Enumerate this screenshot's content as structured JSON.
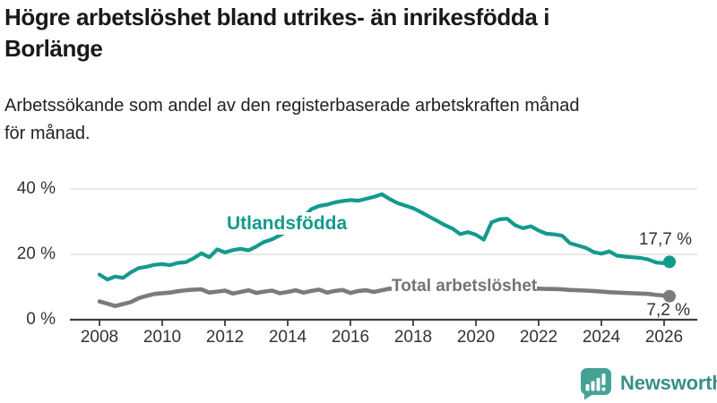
{
  "header": {
    "title_lines": [
      "Högre arbetslöshet bland utrikes- än inrikesfödda i",
      "Borlänge"
    ],
    "subtitle_lines": [
      "Arbetssökande som andel av den registerbaserade arbetskraften månad",
      "för månad."
    ]
  },
  "chart_data": {
    "type": "line",
    "title": "Högre arbetslöshet bland utrikes- än inrikesfödda i Borlänge",
    "subtitle": "Arbetssökande som andel av den registerbaserade arbetskraften månad för månad.",
    "unit": "%",
    "grid": "horizontal-only",
    "legend_position": "inline-labels",
    "x_axis": {
      "range": [
        2007.1,
        2027.1
      ],
      "ticks": [
        {
          "year": 2008,
          "label": "2008"
        },
        {
          "year": 2010,
          "label": "2010"
        },
        {
          "year": 2012,
          "label": "2012"
        },
        {
          "year": 2014,
          "label": "2014"
        },
        {
          "year": 2016,
          "label": "2016"
        },
        {
          "year": 2018,
          "label": "2018"
        },
        {
          "year": 2020,
          "label": "2020"
        },
        {
          "year": 2022,
          "label": "2022"
        },
        {
          "year": 2024,
          "label": "2024"
        },
        {
          "year": 2026,
          "label": "2026"
        }
      ]
    },
    "y_axis": {
      "range": [
        0,
        45
      ],
      "grid_values": [
        20,
        40
      ],
      "ticks": [
        {
          "value": 0,
          "label": "0 %"
        },
        {
          "value": 20,
          "label": "20 %"
        },
        {
          "value": 40,
          "label": "40 %"
        }
      ]
    },
    "series": [
      {
        "name": "Utlandsfödda",
        "color": "#149a8d",
        "end_label": "17,7 %",
        "end_value": 17.7,
        "points": [
          [
            2008.0,
            13.8
          ],
          [
            2008.25,
            12.3
          ],
          [
            2008.5,
            13.2
          ],
          [
            2008.75,
            12.8
          ],
          [
            2009.0,
            14.5
          ],
          [
            2009.25,
            15.8
          ],
          [
            2009.5,
            16.2
          ],
          [
            2009.75,
            16.8
          ],
          [
            2010.0,
            17.0
          ],
          [
            2010.25,
            16.7
          ],
          [
            2010.5,
            17.4
          ],
          [
            2010.75,
            17.6
          ],
          [
            2011.0,
            18.8
          ],
          [
            2011.25,
            20.3
          ],
          [
            2011.5,
            19.1
          ],
          [
            2011.75,
            21.5
          ],
          [
            2012.0,
            20.6
          ],
          [
            2012.25,
            21.3
          ],
          [
            2012.5,
            21.7
          ],
          [
            2012.75,
            21.2
          ],
          [
            2013.0,
            22.4
          ],
          [
            2013.25,
            23.8
          ],
          [
            2013.5,
            24.6
          ],
          [
            2013.75,
            25.8
          ],
          [
            2014.0,
            27.2
          ],
          [
            2014.25,
            29.0
          ],
          [
            2014.5,
            31.4
          ],
          [
            2014.75,
            33.8
          ],
          [
            2015.0,
            34.8
          ],
          [
            2015.25,
            35.2
          ],
          [
            2015.5,
            35.9
          ],
          [
            2015.75,
            36.3
          ],
          [
            2016.0,
            36.6
          ],
          [
            2016.25,
            36.4
          ],
          [
            2016.5,
            37.0
          ],
          [
            2016.75,
            37.6
          ],
          [
            2017.0,
            38.4
          ],
          [
            2017.25,
            36.9
          ],
          [
            2017.5,
            35.7
          ],
          [
            2017.75,
            34.9
          ],
          [
            2018.0,
            34.1
          ],
          [
            2018.25,
            32.9
          ],
          [
            2018.5,
            31.6
          ],
          [
            2018.75,
            30.3
          ],
          [
            2019.0,
            29.0
          ],
          [
            2019.25,
            27.9
          ],
          [
            2019.5,
            26.2
          ],
          [
            2019.75,
            26.8
          ],
          [
            2020.0,
            26.0
          ],
          [
            2020.25,
            24.5
          ],
          [
            2020.5,
            29.8
          ],
          [
            2020.75,
            30.7
          ],
          [
            2021.0,
            30.9
          ],
          [
            2021.25,
            28.9
          ],
          [
            2021.5,
            28.0
          ],
          [
            2021.75,
            28.6
          ],
          [
            2022.0,
            27.3
          ],
          [
            2022.25,
            26.3
          ],
          [
            2022.5,
            26.1
          ],
          [
            2022.75,
            25.7
          ],
          [
            2023.0,
            23.4
          ],
          [
            2023.25,
            22.7
          ],
          [
            2023.5,
            22.0
          ],
          [
            2023.75,
            20.7
          ],
          [
            2024.0,
            20.2
          ],
          [
            2024.25,
            20.9
          ],
          [
            2024.5,
            19.6
          ],
          [
            2024.75,
            19.3
          ],
          [
            2025.0,
            19.1
          ],
          [
            2025.25,
            18.9
          ],
          [
            2025.5,
            18.4
          ],
          [
            2025.75,
            17.5
          ],
          [
            2026.0,
            17.3
          ],
          [
            2026.17,
            17.7
          ]
        ]
      },
      {
        "name": "Total arbetslöshet",
        "color": "#7b7b7d",
        "end_label": "7,2 %",
        "end_value": 7.2,
        "points": [
          [
            2008.0,
            5.6
          ],
          [
            2008.25,
            4.9
          ],
          [
            2008.5,
            4.2
          ],
          [
            2008.75,
            4.8
          ],
          [
            2009.0,
            5.4
          ],
          [
            2009.25,
            6.6
          ],
          [
            2009.5,
            7.3
          ],
          [
            2009.75,
            7.9
          ],
          [
            2010.0,
            8.1
          ],
          [
            2010.25,
            8.3
          ],
          [
            2010.5,
            8.7
          ],
          [
            2010.75,
            9.0
          ],
          [
            2011.0,
            9.2
          ],
          [
            2011.25,
            9.3
          ],
          [
            2011.5,
            8.3
          ],
          [
            2011.75,
            8.6
          ],
          [
            2012.0,
            8.9
          ],
          [
            2012.25,
            8.0
          ],
          [
            2012.5,
            8.5
          ],
          [
            2012.75,
            9.0
          ],
          [
            2013.0,
            8.2
          ],
          [
            2013.25,
            8.6
          ],
          [
            2013.5,
            8.9
          ],
          [
            2013.75,
            8.1
          ],
          [
            2014.0,
            8.5
          ],
          [
            2014.25,
            9.0
          ],
          [
            2014.5,
            8.3
          ],
          [
            2014.75,
            8.8
          ],
          [
            2015.0,
            9.2
          ],
          [
            2015.25,
            8.3
          ],
          [
            2015.5,
            8.8
          ],
          [
            2015.75,
            9.1
          ],
          [
            2016.0,
            8.2
          ],
          [
            2016.25,
            8.8
          ],
          [
            2016.5,
            9.0
          ],
          [
            2016.75,
            8.5
          ],
          [
            2017.0,
            9.0
          ],
          [
            2017.25,
            9.5
          ],
          [
            2017.5,
            9.2
          ],
          [
            2017.75,
            9.0
          ],
          [
            2018.0,
            9.1
          ],
          [
            2018.25,
            8.9
          ],
          [
            2018.5,
            8.8
          ],
          [
            2018.75,
            8.7
          ],
          [
            2019.0,
            8.6
          ],
          [
            2019.25,
            8.5
          ],
          [
            2019.5,
            8.6
          ],
          [
            2019.75,
            8.7
          ],
          [
            2020.0,
            8.9
          ],
          [
            2020.25,
            9.6
          ],
          [
            2020.5,
            10.3
          ],
          [
            2020.75,
            10.4
          ],
          [
            2021.0,
            10.2
          ],
          [
            2021.25,
            10.0
          ],
          [
            2021.5,
            9.8
          ],
          [
            2021.75,
            9.6
          ],
          [
            2022.0,
            9.5
          ],
          [
            2022.25,
            9.4
          ],
          [
            2022.5,
            9.4
          ],
          [
            2022.75,
            9.3
          ],
          [
            2023.0,
            9.1
          ],
          [
            2023.25,
            9.0
          ],
          [
            2023.5,
            8.9
          ],
          [
            2023.75,
            8.8
          ],
          [
            2024.0,
            8.6
          ],
          [
            2024.25,
            8.4
          ],
          [
            2024.5,
            8.3
          ],
          [
            2024.75,
            8.2
          ],
          [
            2025.0,
            8.1
          ],
          [
            2025.25,
            8.0
          ],
          [
            2025.5,
            7.9
          ],
          [
            2025.75,
            7.6
          ],
          [
            2026.0,
            7.4
          ],
          [
            2026.17,
            7.2
          ]
        ]
      }
    ],
    "colors": {
      "grid": "#d9d9d9",
      "axis": "#3d3d3d",
      "axis_text": "#333333"
    }
  },
  "footer": {
    "brand": "Newsworthy",
    "brand_color": "#3a8f85",
    "icon_color": "#46a295",
    "icon": "newsworthy-chart-bubble-icon"
  }
}
